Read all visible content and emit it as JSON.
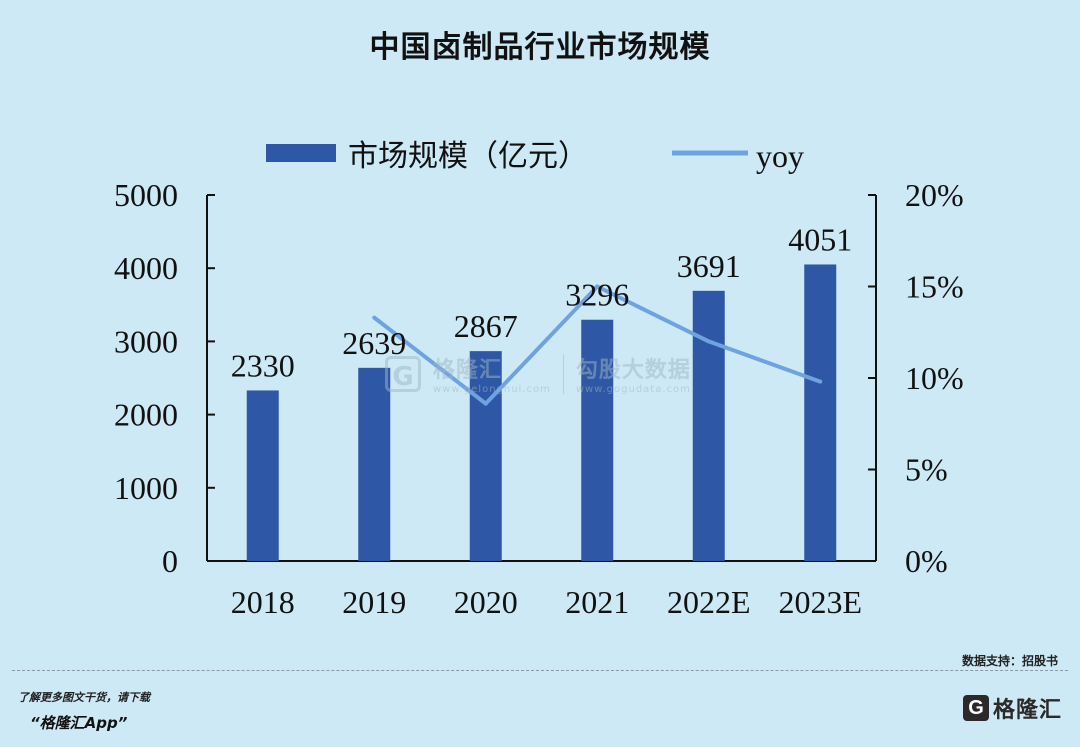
{
  "chart_data": {
    "type": "bar",
    "title": "中国卤制品行业市场规模",
    "categories": [
      "2018",
      "2019",
      "2020",
      "2021",
      "2022E",
      "2023E"
    ],
    "series": [
      {
        "name": "市场规模（亿元）",
        "type": "bar",
        "axis": "left",
        "values": [
          2330,
          2639,
          2867,
          3296,
          3691,
          4051
        ],
        "color": "#2e58a6"
      },
      {
        "name": "yoy",
        "type": "line",
        "axis": "right",
        "values": [
          null,
          13.3,
          8.6,
          15.0,
          12.0,
          9.8
        ],
        "color": "#6fa2e0"
      }
    ],
    "left_axis": {
      "ylim": [
        0,
        5000
      ],
      "ticks": [
        "0",
        "1000",
        "2000",
        "3000",
        "4000",
        "5000"
      ]
    },
    "right_axis": {
      "ylim": [
        0,
        20
      ],
      "ticks": [
        "0%",
        "5%",
        "10%",
        "15%",
        "20%"
      ]
    },
    "data_labels": [
      "2330",
      "2639",
      "2867",
      "3296",
      "3691",
      "4051"
    ],
    "legend_placement": "top-center",
    "grid": false
  },
  "footer": {
    "source": "数据支持：招股书",
    "promo_line": "了解更多图文干货，请下载",
    "promo_app": "“格隆汇App”",
    "brand_name": "格隆汇",
    "brand_logo_letter": "G"
  },
  "watermark": {
    "logo_letter": "G",
    "left_text": "格隆汇",
    "left_url": "www.gelonghui.com",
    "right_text": "勾股大数据",
    "right_url": "www.gogudata.com"
  },
  "colors": {
    "background": "#cde9f6",
    "bar": "#2e58a6",
    "line": "#6fa2e0"
  }
}
